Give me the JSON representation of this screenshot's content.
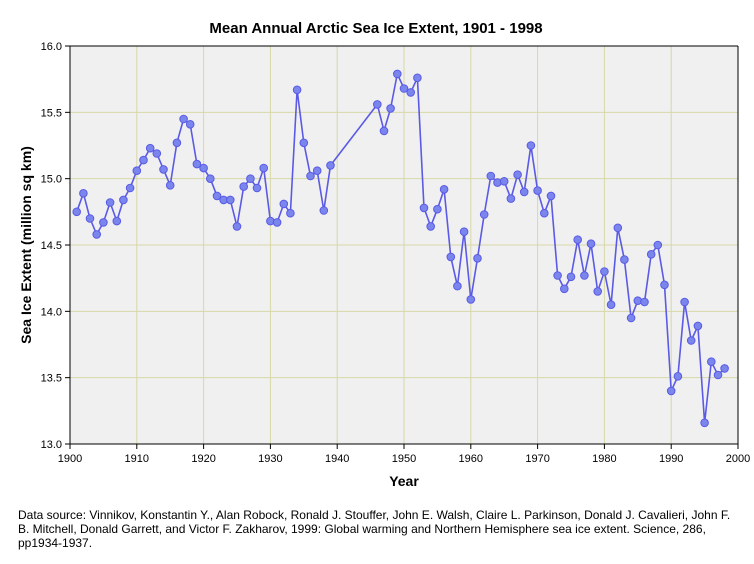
{
  "chart_data": {
    "type": "line",
    "title": "Mean Annual Arctic Sea Ice Extent, 1901 - 1998",
    "xlabel": "Year",
    "ylabel": "Sea Ice Extent (million sq km)",
    "xlim": [
      1900,
      2000
    ],
    "ylim": [
      13.0,
      16.0
    ],
    "xticks": [
      "1900",
      "1910",
      "1920",
      "1930",
      "1940",
      "1950",
      "1960",
      "1970",
      "1980",
      "1990",
      "2000"
    ],
    "yticks": [
      "13.0",
      "13.5",
      "14.0",
      "14.5",
      "15.0",
      "15.5",
      "16.0"
    ],
    "grid": true,
    "series": [
      {
        "name": "Sea Ice Extent",
        "color": "#5a5ae6",
        "marker_color": "#7a86ec",
        "points": [
          [
            1901,
            14.75
          ],
          [
            1902,
            14.89
          ],
          [
            1903,
            14.7
          ],
          [
            1904,
            14.58
          ],
          [
            1905,
            14.67
          ],
          [
            1906,
            14.82
          ],
          [
            1907,
            14.68
          ],
          [
            1908,
            14.84
          ],
          [
            1909,
            14.93
          ],
          [
            1910,
            15.06
          ],
          [
            1911,
            15.14
          ],
          [
            1912,
            15.23
          ],
          [
            1913,
            15.19
          ],
          [
            1914,
            15.07
          ],
          [
            1915,
            14.95
          ],
          [
            1916,
            15.27
          ],
          [
            1917,
            15.45
          ],
          [
            1918,
            15.41
          ],
          [
            1919,
            15.11
          ],
          [
            1920,
            15.08
          ],
          [
            1921,
            15.0
          ],
          [
            1922,
            14.87
          ],
          [
            1923,
            14.84
          ],
          [
            1924,
            14.84
          ],
          [
            1925,
            14.64
          ],
          [
            1926,
            14.94
          ],
          [
            1927,
            15.0
          ],
          [
            1928,
            14.93
          ],
          [
            1929,
            15.08
          ],
          [
            1930,
            14.68
          ],
          [
            1931,
            14.67
          ],
          [
            1932,
            14.81
          ],
          [
            1933,
            14.74
          ],
          [
            1934,
            15.67
          ],
          [
            1935,
            15.27
          ],
          [
            1936,
            15.02
          ],
          [
            1937,
            15.06
          ],
          [
            1938,
            14.76
          ],
          [
            1939,
            15.1
          ],
          [
            1946,
            15.56
          ],
          [
            1947,
            15.36
          ],
          [
            1948,
            15.53
          ],
          [
            1949,
            15.79
          ],
          [
            1950,
            15.68
          ],
          [
            1951,
            15.65
          ],
          [
            1952,
            15.76
          ],
          [
            1953,
            14.78
          ],
          [
            1954,
            14.64
          ],
          [
            1955,
            14.77
          ],
          [
            1956,
            14.92
          ],
          [
            1957,
            14.41
          ],
          [
            1958,
            14.19
          ],
          [
            1959,
            14.6
          ],
          [
            1960,
            14.09
          ],
          [
            1961,
            14.4
          ],
          [
            1962,
            14.73
          ],
          [
            1963,
            15.02
          ],
          [
            1964,
            14.97
          ],
          [
            1965,
            14.98
          ],
          [
            1966,
            14.85
          ],
          [
            1967,
            15.03
          ],
          [
            1968,
            14.9
          ],
          [
            1969,
            15.25
          ],
          [
            1970,
            14.91
          ],
          [
            1971,
            14.74
          ],
          [
            1972,
            14.87
          ],
          [
            1973,
            14.27
          ],
          [
            1974,
            14.17
          ],
          [
            1975,
            14.26
          ],
          [
            1976,
            14.54
          ],
          [
            1977,
            14.27
          ],
          [
            1978,
            14.51
          ],
          [
            1979,
            14.15
          ],
          [
            1980,
            14.3
          ],
          [
            1981,
            14.05
          ],
          [
            1982,
            14.63
          ],
          [
            1983,
            14.39
          ],
          [
            1984,
            13.95
          ],
          [
            1985,
            14.08
          ],
          [
            1986,
            14.07
          ],
          [
            1987,
            14.43
          ],
          [
            1988,
            14.5
          ],
          [
            1989,
            14.2
          ],
          [
            1990,
            13.4
          ],
          [
            1991,
            13.51
          ],
          [
            1992,
            14.07
          ],
          [
            1993,
            13.78
          ],
          [
            1994,
            13.89
          ],
          [
            1995,
            13.16
          ],
          [
            1996,
            13.62
          ],
          [
            1997,
            13.52
          ],
          [
            1998,
            13.57
          ]
        ]
      }
    ]
  },
  "footer": {
    "source_note": "Data source: Vinnikov, Konstantin Y., Alan Robock, Ronald J. Stouffer, John E. Walsh, Claire L. Parkinson, Donald J. Cavalieri, John F. B. Mitchell, Donald Garrett, and Victor F. Zakharov, 1999: Global warming and Northern Hemisphere sea ice extent. Science, 286, pp1934-1937."
  },
  "colors": {
    "plot_background": "#f0f0f0",
    "grid": "#d8d8a8",
    "axis": "#000000"
  }
}
